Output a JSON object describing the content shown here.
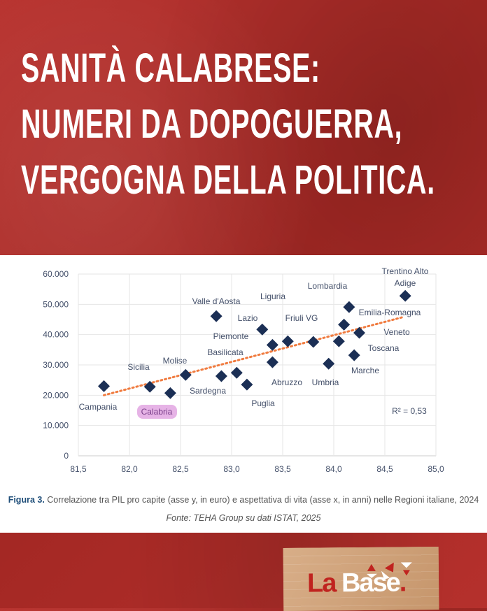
{
  "headline": [
    "SANITÀ CALABRESE:",
    "NUMERI DA DOPOGUERRA,",
    "VERGOGNA DELLA POLITICA."
  ],
  "caption": {
    "label": "Figura 3.",
    "text": " Correlazione tra PIL pro capite (asse y, in euro) e aspettativa di vita (asse x, in anni) nelle Regioni italiane, 2024",
    "source": "Fonte: TEHA Group su dati ISTAT, 2025"
  },
  "logo": {
    "la": "La",
    "base": "Base",
    "dot": "."
  },
  "colors": {
    "background": "#b3302c",
    "points": "#1b2f55",
    "trendline": "#f07b3f",
    "highlight": "#e6b3e6",
    "labels": "#44506a"
  },
  "chart_data": {
    "type": "scatter",
    "xlim": [
      81.5,
      85.0
    ],
    "ylim": [
      0,
      60000
    ],
    "xticks": [
      "81,5",
      "82,0",
      "82,5",
      "83,0",
      "83,5",
      "84,0",
      "84,5",
      "85,0"
    ],
    "yticks": [
      "0",
      "10.000",
      "20.000",
      "30.000",
      "40.000",
      "50.000",
      "60.000"
    ],
    "grid": true,
    "annotation": "R² = 0,53",
    "highlighted": "Calabria",
    "trendline": {
      "style": "dotted",
      "from": [
        81.75,
        20000
      ],
      "to": [
        84.68,
        45800
      ]
    },
    "points": [
      {
        "label": "Campania",
        "x": 81.75,
        "y": 23000
      },
      {
        "label": "Sicilia",
        "x": 82.2,
        "y": 22800
      },
      {
        "label": "Calabria",
        "x": 82.4,
        "y": 20700
      },
      {
        "label": "Molise",
        "x": 82.55,
        "y": 26700
      },
      {
        "label": "Sardegna",
        "x": 82.9,
        "y": 26300
      },
      {
        "label": "Basilicata",
        "x": 83.05,
        "y": 27400
      },
      {
        "label": "Puglia",
        "x": 83.15,
        "y": 23500
      },
      {
        "label": "Valle d'Aosta",
        "x": 82.85,
        "y": 46100
      },
      {
        "label": "Lazio",
        "x": 83.3,
        "y": 41700
      },
      {
        "label": "Piemonte",
        "x": 83.4,
        "y": 36600
      },
      {
        "label": "Abruzzo",
        "x": 83.4,
        "y": 30900
      },
      {
        "label": "Liguria",
        "x": 83.55,
        "y": 37800
      },
      {
        "label": "Friuli VG",
        "x": 83.8,
        "y": 37600
      },
      {
        "label": "Umbria",
        "x": 83.95,
        "y": 30400
      },
      {
        "label": "Toscana",
        "x": 84.05,
        "y": 37800
      },
      {
        "label": "Emilia-Romagna",
        "x": 84.1,
        "y": 43300
      },
      {
        "label": "Lombardia",
        "x": 84.15,
        "y": 49100
      },
      {
        "label": "Veneto",
        "x": 84.25,
        "y": 40600
      },
      {
        "label": "Marche",
        "x": 84.2,
        "y": 33200
      },
      {
        "label": "Trentino Alto Adige",
        "label_lines": [
          "Trentino Alto",
          "Adige"
        ],
        "x": 84.7,
        "y": 52800
      }
    ]
  }
}
